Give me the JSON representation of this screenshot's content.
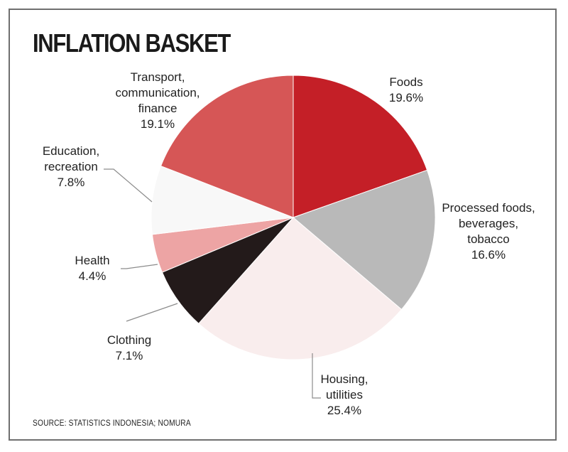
{
  "chart_data": {
    "type": "pie",
    "title": "INFLATION BASKET",
    "source": "SOURCE: STATISTICS INDONESIA; NOMURA",
    "slices": [
      {
        "id": "foods",
        "label_lines": [
          "Foods"
        ],
        "value_label": "19.6%",
        "value": 19.6,
        "color": "#c41f27"
      },
      {
        "id": "processed",
        "label_lines": [
          "Processed foods,",
          "beverages,",
          "tobacco"
        ],
        "value_label": "16.6%",
        "value": 16.6,
        "color": "#b9b9b9"
      },
      {
        "id": "housing",
        "label_lines": [
          "Housing,",
          "utilities"
        ],
        "value_label": "25.4%",
        "value": 25.4,
        "color": "#f9eded"
      },
      {
        "id": "clothing",
        "label_lines": [
          "Clothing"
        ],
        "value_label": "7.1%",
        "value": 7.1,
        "color": "#231a1a"
      },
      {
        "id": "health",
        "label_lines": [
          "Health"
        ],
        "value_label": "4.4%",
        "value": 4.4,
        "color": "#eda4a4"
      },
      {
        "id": "education",
        "label_lines": [
          "Education,",
          "recreation"
        ],
        "value_label": "7.8%",
        "value": 7.8,
        "color": "#f8f8f8"
      },
      {
        "id": "transport",
        "label_lines": [
          "Transport,",
          "communication,",
          "finance"
        ],
        "value_label": "19.1%",
        "value": 19.1,
        "color": "#d65656"
      }
    ]
  }
}
